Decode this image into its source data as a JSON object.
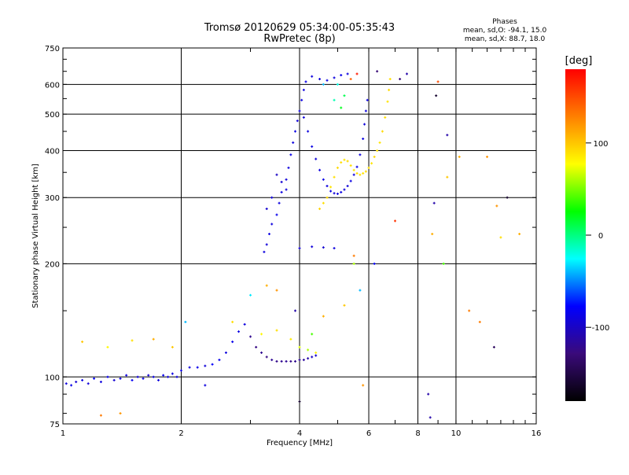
{
  "title": {
    "line1": "Tromsø 20120629 05:34:00-05:35:43",
    "line2": "RwPretec (8p)"
  },
  "stats": {
    "heading": "Phases",
    "line_o": "mean, sd,O: -94.1, 15.0",
    "line_x": "mean, sd,X: 88.7, 18.0"
  },
  "colorbar": {
    "label": "[deg]",
    "min": -180,
    "max": 180,
    "ticks": [
      {
        "value": 100,
        "label": "100"
      },
      {
        "value": 0,
        "label": "0"
      },
      {
        "value": -100,
        "label": "-100"
      }
    ],
    "stops": [
      "#000000",
      "#3a0a7a",
      "#0000ff",
      "#00ffff",
      "#00ff00",
      "#ffff00",
      "#ff8000",
      "#ff0000"
    ]
  },
  "chart_data": {
    "type": "scatter",
    "xlabel": "Frequency [MHz]",
    "ylabel": "Stationary phase Virtual Height [km]",
    "xscale": "log",
    "yscale": "log",
    "xlim": [
      1,
      16
    ],
    "ylim": [
      75,
      750
    ],
    "grid": true,
    "x_ticks": [
      {
        "value": 1,
        "label": "1"
      },
      {
        "value": 2,
        "label": "2"
      },
      {
        "value": 4,
        "label": "4"
      },
      {
        "value": 6,
        "label": "6"
      },
      {
        "value": 8,
        "label": "8"
      },
      {
        "value": 10,
        "label": "10"
      },
      {
        "value": 16,
        "label": "16"
      }
    ],
    "y_ticks": [
      {
        "value": 75,
        "label": "75"
      },
      {
        "value": 100,
        "label": "100"
      },
      {
        "value": 200,
        "label": "200"
      },
      {
        "value": 300,
        "label": "300"
      },
      {
        "value": 400,
        "label": "400"
      },
      {
        "value": 500,
        "label": "500"
      },
      {
        "value": 600,
        "label": "600"
      },
      {
        "value": 750,
        "label": "750"
      }
    ],
    "series": [
      {
        "points": [
          [
            1.02,
            96,
            -90
          ],
          [
            1.05,
            95,
            -85
          ],
          [
            1.08,
            97,
            -95
          ],
          [
            1.12,
            98,
            -88
          ],
          [
            1.16,
            96,
            -92
          ],
          [
            1.2,
            99,
            -80
          ],
          [
            1.25,
            97,
            -90
          ],
          [
            1.3,
            100,
            -85
          ],
          [
            1.35,
            98,
            -95
          ],
          [
            1.4,
            99,
            -88
          ],
          [
            1.45,
            101,
            -90
          ],
          [
            1.5,
            98,
            -82
          ],
          [
            1.55,
            100,
            -92
          ],
          [
            1.6,
            99,
            -86
          ],
          [
            1.65,
            101,
            -95
          ],
          [
            1.7,
            100,
            -88
          ],
          [
            1.75,
            98,
            -90
          ],
          [
            1.8,
            101,
            -84
          ],
          [
            1.85,
            100,
            -92
          ],
          [
            1.9,
            102,
            -88
          ],
          [
            1.95,
            100,
            -90
          ],
          [
            2.0,
            104,
            -86
          ],
          [
            2.1,
            106,
            -90
          ],
          [
            2.2,
            106,
            -85
          ],
          [
            2.3,
            107,
            -92
          ],
          [
            2.4,
            108,
            -80
          ],
          [
            2.5,
            111,
            -85
          ],
          [
            2.6,
            116,
            -90
          ],
          [
            2.7,
            124,
            -85
          ],
          [
            2.8,
            132,
            -88
          ],
          [
            2.9,
            138,
            -90
          ],
          [
            3.0,
            128,
            -120
          ],
          [
            3.1,
            120,
            -125
          ],
          [
            3.2,
            116,
            -120
          ],
          [
            3.3,
            113,
            -125
          ],
          [
            3.4,
            111,
            -118
          ],
          [
            3.5,
            110,
            -122
          ],
          [
            3.6,
            110,
            -120
          ],
          [
            3.7,
            110,
            -118
          ],
          [
            3.8,
            110,
            -122
          ],
          [
            3.9,
            110,
            -120
          ],
          [
            4.0,
            111,
            -118
          ],
          [
            4.1,
            111,
            -115
          ],
          [
            4.2,
            112,
            -110
          ],
          [
            4.3,
            113,
            -100
          ],
          [
            4.4,
            114,
            -95
          ],
          [
            3.2,
            130,
            80
          ],
          [
            3.5,
            133,
            90
          ],
          [
            3.8,
            126,
            85
          ],
          [
            4.0,
            120,
            70
          ],
          [
            4.2,
            118,
            60
          ],
          [
            4.4,
            116,
            80
          ],
          [
            3.25,
            215,
            -90
          ],
          [
            3.3,
            225,
            -92
          ],
          [
            3.35,
            240,
            -88
          ],
          [
            3.4,
            255,
            -90
          ],
          [
            3.5,
            270,
            -85
          ],
          [
            3.55,
            290,
            -90
          ],
          [
            3.6,
            310,
            -88
          ],
          [
            3.7,
            335,
            -92
          ],
          [
            3.75,
            360,
            -90
          ],
          [
            3.8,
            390,
            -86
          ],
          [
            3.85,
            420,
            -90
          ],
          [
            3.9,
            450,
            -88
          ],
          [
            3.95,
            480,
            -92
          ],
          [
            4.0,
            510,
            -90
          ],
          [
            4.05,
            545,
            -88
          ],
          [
            4.1,
            580,
            -90
          ],
          [
            4.15,
            610,
            -86
          ],
          [
            4.3,
            630,
            -90
          ],
          [
            4.5,
            620,
            -92
          ],
          [
            4.7,
            615,
            -88
          ],
          [
            4.9,
            625,
            -90
          ],
          [
            5.1,
            635,
            -86
          ],
          [
            5.3,
            640,
            -90
          ],
          [
            4.1,
            490,
            -92
          ],
          [
            4.2,
            450,
            -90
          ],
          [
            4.3,
            410,
            -88
          ],
          [
            4.4,
            380,
            -92
          ],
          [
            4.5,
            355,
            -90
          ],
          [
            4.6,
            335,
            -86
          ],
          [
            4.7,
            322,
            -90
          ],
          [
            4.8,
            312,
            -88
          ],
          [
            4.9,
            308,
            -92
          ],
          [
            5.0,
            307,
            -90
          ],
          [
            5.1,
            310,
            -88
          ],
          [
            5.2,
            315,
            -90
          ],
          [
            5.3,
            322,
            -92
          ],
          [
            5.4,
            332,
            -88
          ],
          [
            5.5,
            345,
            -90
          ],
          [
            5.6,
            362,
            -86
          ],
          [
            5.7,
            390,
            -90
          ],
          [
            5.8,
            430,
            -88
          ],
          [
            5.85,
            470,
            -92
          ],
          [
            5.9,
            510,
            -90
          ],
          [
            5.95,
            545,
            -88
          ],
          [
            3.5,
            345,
            -100
          ],
          [
            3.6,
            330,
            -95
          ],
          [
            3.7,
            315,
            -92
          ],
          [
            3.4,
            300,
            -90
          ],
          [
            3.3,
            280,
            -95
          ],
          [
            4.0,
            220,
            -95
          ],
          [
            4.3,
            222,
            -92
          ],
          [
            4.6,
            221,
            -95
          ],
          [
            4.9,
            220,
            -90
          ],
          [
            4.5,
            280,
            95
          ],
          [
            4.6,
            290,
            90
          ],
          [
            4.7,
            300,
            92
          ],
          [
            4.8,
            320,
            88
          ],
          [
            4.9,
            340,
            90
          ],
          [
            5.0,
            360,
            92
          ],
          [
            5.1,
            372,
            90
          ],
          [
            5.2,
            378,
            88
          ],
          [
            5.3,
            375,
            92
          ],
          [
            5.4,
            365,
            90
          ],
          [
            5.5,
            355,
            88
          ],
          [
            5.6,
            348,
            92
          ],
          [
            5.7,
            345,
            90
          ],
          [
            5.8,
            348,
            88
          ],
          [
            5.9,
            352,
            92
          ],
          [
            6.0,
            360,
            90
          ],
          [
            6.1,
            370,
            88
          ],
          [
            6.2,
            385,
            92
          ],
          [
            6.3,
            400,
            90
          ],
          [
            6.4,
            420,
            88
          ],
          [
            6.5,
            450,
            92
          ],
          [
            6.6,
            490,
            90
          ],
          [
            6.7,
            540,
            88
          ],
          [
            6.75,
            580,
            92
          ],
          [
            6.8,
            620,
            90
          ],
          [
            9.0,
            610,
            150
          ],
          [
            9.5,
            440,
            -110
          ],
          [
            8.8,
            290,
            -110
          ],
          [
            8.5,
            90,
            -110
          ],
          [
            8.6,
            78,
            -110
          ],
          [
            9.3,
            200,
            40
          ],
          [
            10.2,
            385,
            110
          ],
          [
            12.0,
            385,
            120
          ],
          [
            13.5,
            300,
            -160
          ],
          [
            14.5,
            240,
            110
          ],
          [
            10.8,
            150,
            130
          ],
          [
            11.5,
            140,
            130
          ],
          [
            12.5,
            120,
            -140
          ],
          [
            13.0,
            235,
            90
          ],
          [
            12.7,
            285,
            120
          ],
          [
            1.12,
            124,
            100
          ],
          [
            1.3,
            120,
            80
          ],
          [
            1.5,
            125,
            90
          ],
          [
            1.7,
            126,
            110
          ],
          [
            1.9,
            120,
            100
          ],
          [
            2.05,
            140,
            -40
          ],
          [
            2.3,
            95,
            -90
          ],
          [
            1.4,
            80,
            120
          ],
          [
            1.25,
            79,
            130
          ],
          [
            2.7,
            140,
            90
          ],
          [
            3.0,
            165,
            -30
          ],
          [
            3.5,
            170,
            120
          ],
          [
            3.9,
            150,
            -110
          ],
          [
            4.3,
            130,
            40
          ],
          [
            4.6,
            145,
            110
          ],
          [
            5.2,
            155,
            100
          ],
          [
            5.7,
            170,
            -40
          ],
          [
            5.5,
            210,
            130
          ],
          [
            5.8,
            95,
            120
          ],
          [
            4.0,
            86,
            -160
          ],
          [
            3.3,
            175,
            110
          ],
          [
            5.0,
            600,
            -20
          ],
          [
            5.2,
            560,
            10
          ],
          [
            4.9,
            545,
            -10
          ],
          [
            5.4,
            620,
            140
          ],
          [
            5.1,
            520,
            20
          ],
          [
            4.6,
            600,
            -40
          ],
          [
            5.6,
            640,
            170
          ],
          [
            6.3,
            650,
            -130
          ],
          [
            7.2,
            620,
            -130
          ],
          [
            7.5,
            640,
            -110
          ],
          [
            7.0,
            260,
            160
          ],
          [
            8.7,
            240,
            110
          ],
          [
            9.5,
            340,
            100
          ],
          [
            8.9,
            560,
            -160
          ],
          [
            6.2,
            200,
            -80
          ],
          [
            5.5,
            200,
            60
          ]
        ]
      }
    ]
  }
}
